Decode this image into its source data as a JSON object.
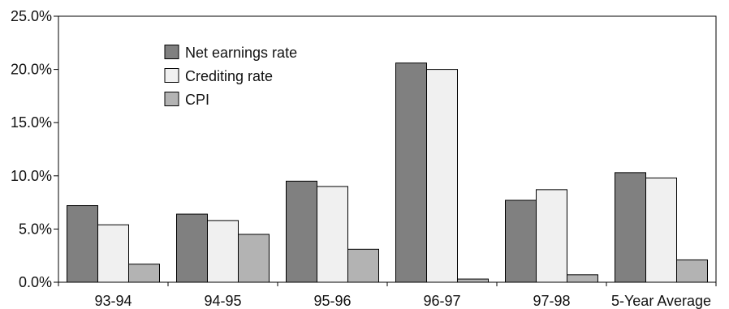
{
  "chart_data": {
    "type": "bar",
    "categories": [
      "93-94",
      "94-95",
      "95-96",
      "96-97",
      "97-98",
      "5-Year Average"
    ],
    "series": [
      {
        "name": "Net earnings rate",
        "values": [
          7.2,
          6.4,
          9.5,
          20.6,
          7.7,
          10.3
        ],
        "color": "#808080"
      },
      {
        "name": "Crediting rate",
        "values": [
          5.4,
          5.8,
          9.0,
          20.0,
          8.7,
          9.8
        ],
        "color": "#f0f0f0"
      },
      {
        "name": "CPI",
        "values": [
          1.7,
          4.5,
          3.1,
          0.3,
          0.7,
          2.1
        ],
        "color": "#b3b3b3"
      }
    ],
    "ylim": [
      0,
      25
    ],
    "yticks": [
      0,
      5,
      10,
      15,
      20,
      25
    ],
    "ytick_labels": [
      "0.0%",
      "5.0%",
      "10.0%",
      "15.0%",
      "20.0%",
      "25.0%"
    ],
    "title": "",
    "xlabel": "",
    "ylabel": "",
    "legend_position": "top-left",
    "grid": false
  }
}
